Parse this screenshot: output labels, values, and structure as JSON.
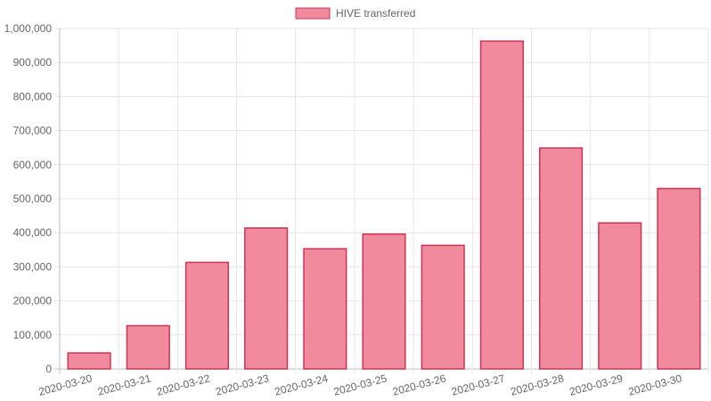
{
  "chart_data": {
    "type": "bar",
    "categories": [
      "2020-03-20",
      "2020-03-21",
      "2020-03-22",
      "2020-03-23",
      "2020-03-24",
      "2020-03-25",
      "2020-03-26",
      "2020-03-27",
      "2020-03-28",
      "2020-03-29",
      "2020-03-30"
    ],
    "series": [
      {
        "name": "HIVE transferred",
        "values": [
          47000,
          127000,
          313000,
          414000,
          353000,
          396000,
          363000,
          963000,
          649000,
          429000,
          530000
        ],
        "fill": "#f28a9e",
        "stroke": "#cc3355"
      }
    ],
    "ylim": [
      0,
      1000000
    ],
    "yticks": [
      "0",
      "100,000",
      "200,000",
      "300,000",
      "400,000",
      "500,000",
      "600,000",
      "700,000",
      "800,000",
      "900,000",
      "1,000,000"
    ],
    "legend": "top-center",
    "grid": true
  }
}
